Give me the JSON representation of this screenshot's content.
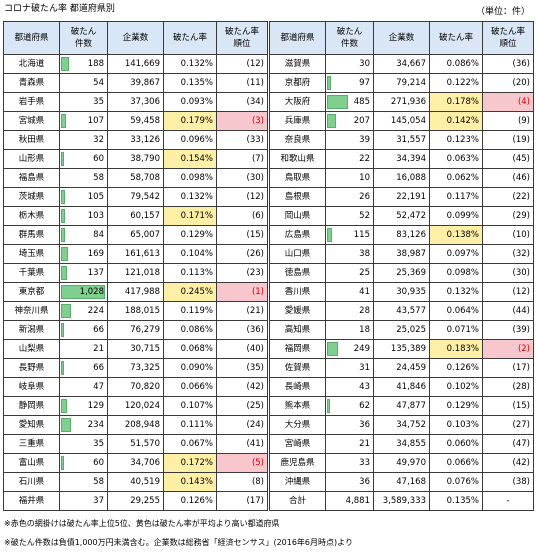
{
  "title": "コロナ破たん率  都道府県別",
  "unit": "（単位：件）",
  "headers": {
    "pref": "都道府県",
    "bankruptcy_count": "破たん\n件数",
    "companies": "企業数",
    "rate": "破たん率",
    "rank": "破たん率\n順位"
  },
  "left_rows": [
    {
      "pref": "北海道",
      "count": "188",
      "companies": "141,669",
      "rate": "0.132%",
      "rank": "(12)",
      "hl": ""
    },
    {
      "pref": "青森県",
      "count": "54",
      "companies": "39,867",
      "rate": "0.135%",
      "rank": "(11)",
      "hl": ""
    },
    {
      "pref": "岩手県",
      "count": "35",
      "companies": "37,306",
      "rate": "0.093%",
      "rank": "(34)",
      "hl": ""
    },
    {
      "pref": "宮城県",
      "count": "107",
      "companies": "59,458",
      "rate": "0.179%",
      "rank": "(3)",
      "hl": "pink"
    },
    {
      "pref": "秋田県",
      "count": "32",
      "companies": "33,126",
      "rate": "0.096%",
      "rank": "(33)",
      "hl": ""
    },
    {
      "pref": "山形県",
      "count": "60",
      "companies": "38,790",
      "rate": "0.154%",
      "rank": "(7)",
      "hl": "yellow"
    },
    {
      "pref": "福島県",
      "count": "58",
      "companies": "58,708",
      "rate": "0.098%",
      "rank": "(30)",
      "hl": ""
    },
    {
      "pref": "茨城県",
      "count": "105",
      "companies": "79,542",
      "rate": "0.132%",
      "rank": "(12)",
      "hl": ""
    },
    {
      "pref": "栃木県",
      "count": "103",
      "companies": "60,157",
      "rate": "0.171%",
      "rank": "(6)",
      "hl": "yellow"
    },
    {
      "pref": "群馬県",
      "count": "84",
      "companies": "65,007",
      "rate": "0.129%",
      "rank": "(15)",
      "hl": ""
    },
    {
      "pref": "埼玉県",
      "count": "169",
      "companies": "161,613",
      "rate": "0.104%",
      "rank": "(26)",
      "hl": ""
    },
    {
      "pref": "千葉県",
      "count": "137",
      "companies": "121,018",
      "rate": "0.113%",
      "rank": "(23)",
      "hl": ""
    },
    {
      "pref": "東京都",
      "count": "1,028",
      "companies": "417,988",
      "rate": "0.245%",
      "rank": "(1)",
      "hl": "pink"
    },
    {
      "pref": "神奈川県",
      "count": "224",
      "companies": "188,015",
      "rate": "0.119%",
      "rank": "(21)",
      "hl": ""
    },
    {
      "pref": "新潟県",
      "count": "66",
      "companies": "76,279",
      "rate": "0.086%",
      "rank": "(36)",
      "hl": ""
    },
    {
      "pref": "山梨県",
      "count": "21",
      "companies": "30,715",
      "rate": "0.068%",
      "rank": "(40)",
      "hl": ""
    },
    {
      "pref": "長野県",
      "count": "66",
      "companies": "73,325",
      "rate": "0.090%",
      "rank": "(35)",
      "hl": ""
    },
    {
      "pref": "岐阜県",
      "count": "47",
      "companies": "70,820",
      "rate": "0.066%",
      "rank": "(42)",
      "hl": ""
    },
    {
      "pref": "静岡県",
      "count": "129",
      "companies": "120,024",
      "rate": "0.107%",
      "rank": "(25)",
      "hl": ""
    },
    {
      "pref": "愛知県",
      "count": "234",
      "companies": "208,948",
      "rate": "0.111%",
      "rank": "(24)",
      "hl": ""
    },
    {
      "pref": "三重県",
      "count": "35",
      "companies": "51,570",
      "rate": "0.067%",
      "rank": "(41)",
      "hl": ""
    },
    {
      "pref": "富山県",
      "count": "60",
      "companies": "34,706",
      "rate": "0.172%",
      "rank": "(5)",
      "hl": "pink"
    },
    {
      "pref": "石川県",
      "count": "58",
      "companies": "40,519",
      "rate": "0.143%",
      "rank": "(8)",
      "hl": "yellow"
    },
    {
      "pref": "福井県",
      "count": "37",
      "companies": "29,255",
      "rate": "0.126%",
      "rank": "(17)",
      "hl": ""
    }
  ],
  "right_rows": [
    {
      "pref": "滋賀県",
      "count": "30",
      "companies": "34,667",
      "rate": "0.086%",
      "rank": "(36)",
      "hl": ""
    },
    {
      "pref": "京都府",
      "count": "97",
      "companies": "79,214",
      "rate": "0.122%",
      "rank": "(20)",
      "hl": ""
    },
    {
      "pref": "大阪府",
      "count": "485",
      "companies": "271,936",
      "rate": "0.178%",
      "rank": "(4)",
      "hl": "pink"
    },
    {
      "pref": "兵庫県",
      "count": "207",
      "companies": "145,054",
      "rate": "0.142%",
      "rank": "(9)",
      "hl": "yellow"
    },
    {
      "pref": "奈良県",
      "count": "39",
      "companies": "31,557",
      "rate": "0.123%",
      "rank": "(19)",
      "hl": ""
    },
    {
      "pref": "和歌山県",
      "count": "22",
      "companies": "34,394",
      "rate": "0.063%",
      "rank": "(45)",
      "hl": ""
    },
    {
      "pref": "鳥取県",
      "count": "10",
      "companies": "16,088",
      "rate": "0.062%",
      "rank": "(46)",
      "hl": ""
    },
    {
      "pref": "島根県",
      "count": "26",
      "companies": "22,191",
      "rate": "0.117%",
      "rank": "(22)",
      "hl": ""
    },
    {
      "pref": "岡山県",
      "count": "52",
      "companies": "52,472",
      "rate": "0.099%",
      "rank": "(29)",
      "hl": ""
    },
    {
      "pref": "広島県",
      "count": "115",
      "companies": "83,126",
      "rate": "0.138%",
      "rank": "(10)",
      "hl": "yellow"
    },
    {
      "pref": "山口県",
      "count": "38",
      "companies": "38,987",
      "rate": "0.097%",
      "rank": "(32)",
      "hl": ""
    },
    {
      "pref": "徳島県",
      "count": "25",
      "companies": "25,369",
      "rate": "0.098%",
      "rank": "(30)",
      "hl": ""
    },
    {
      "pref": "香川県",
      "count": "41",
      "companies": "30,935",
      "rate": "0.132%",
      "rank": "(12)",
      "hl": ""
    },
    {
      "pref": "愛媛県",
      "count": "28",
      "companies": "43,577",
      "rate": "0.064%",
      "rank": "(44)",
      "hl": ""
    },
    {
      "pref": "高知県",
      "count": "18",
      "companies": "25,025",
      "rate": "0.071%",
      "rank": "(39)",
      "hl": ""
    },
    {
      "pref": "福岡県",
      "count": "249",
      "companies": "135,389",
      "rate": "0.183%",
      "rank": "(2)",
      "hl": "pink"
    },
    {
      "pref": "佐賀県",
      "count": "31",
      "companies": "24,459",
      "rate": "0.126%",
      "rank": "(17)",
      "hl": ""
    },
    {
      "pref": "長崎県",
      "count": "43",
      "companies": "41,846",
      "rate": "0.102%",
      "rank": "(28)",
      "hl": ""
    },
    {
      "pref": "熊本県",
      "count": "62",
      "companies": "47,877",
      "rate": "0.129%",
      "rank": "(15)",
      "hl": ""
    },
    {
      "pref": "大分県",
      "count": "36",
      "companies": "34,752",
      "rate": "0.103%",
      "rank": "(27)",
      "hl": ""
    },
    {
      "pref": "宮崎県",
      "count": "21",
      "companies": "34,855",
      "rate": "0.060%",
      "rank": "(47)",
      "hl": ""
    },
    {
      "pref": "鹿児島県",
      "count": "33",
      "companies": "49,970",
      "rate": "0.066%",
      "rank": "(42)",
      "hl": ""
    },
    {
      "pref": "沖縄県",
      "count": "36",
      "companies": "47,168",
      "rate": "0.076%",
      "rank": "(38)",
      "hl": ""
    }
  ],
  "total": {
    "label": "合計",
    "count": "4,881",
    "companies": "3,589,333",
    "rate": "0.135%",
    "rank": "-"
  },
  "count_bar_max": 1028,
  "colors": {
    "header_bg": "#d9e6f5",
    "yellow_highlight": "#fdefa6",
    "pink_highlight": "#f8c6cd",
    "rank_red": "#d10000",
    "bar": "#7fcf8e"
  },
  "notes": [
    "※赤色の網掛けは破たん率上位5位、黄色は破たん率が平均より高い都道府県",
    "※破たん件数は負債1,000万円未満含む。企業数は総務省「経済センサス」(2016年6月時点)より"
  ]
}
